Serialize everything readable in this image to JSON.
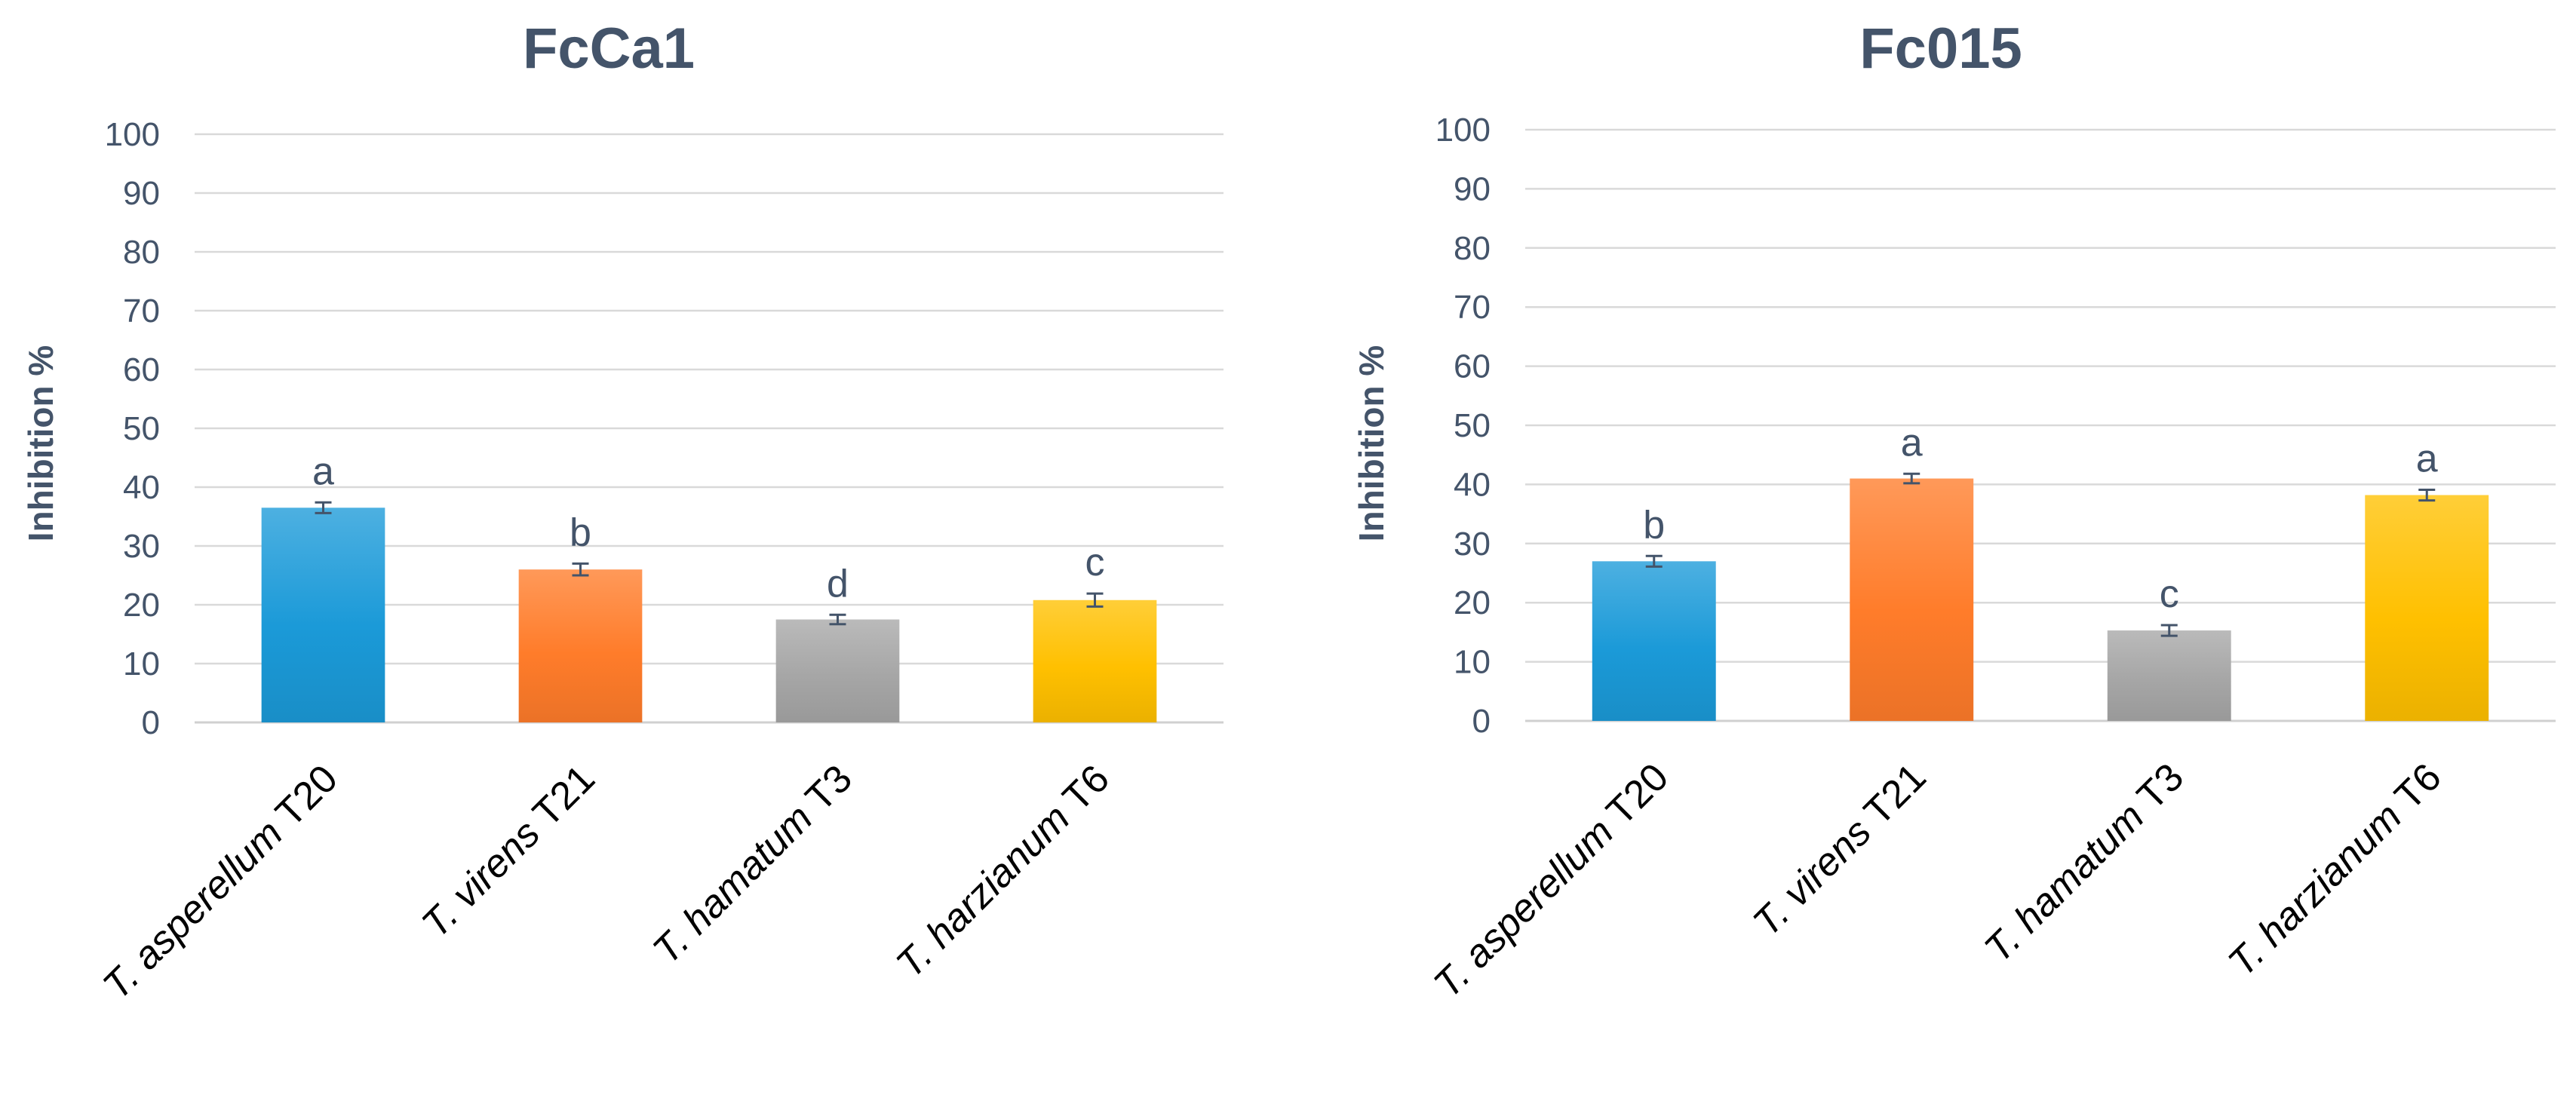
{
  "chart_data": [
    {
      "type": "bar",
      "title": "FcCa1",
      "ylabel": "Inhibition %",
      "xlabel": "",
      "ylim": [
        0,
        100
      ],
      "yticks": [
        0,
        10,
        20,
        30,
        40,
        50,
        60,
        70,
        80,
        90,
        100
      ],
      "grid": true,
      "categories": [
        {
          "italic": "T. asperellum",
          "suffix": " T20"
        },
        {
          "italic": "T. virens",
          "suffix": " T21"
        },
        {
          "italic": "T. hamatum",
          "suffix": " T3"
        },
        {
          "italic": "T. harzianum",
          "suffix": " T6"
        }
      ],
      "values": [
        36.5,
        26.0,
        17.5,
        20.8
      ],
      "errors": [
        0.9,
        1.0,
        0.8,
        1.1
      ],
      "significance": [
        "a",
        "b",
        "d",
        "c"
      ],
      "colors": [
        "#1B9AD8",
        "#FF7C2A",
        "#A6A6A6",
        "#FFC000"
      ]
    },
    {
      "type": "bar",
      "title": "Fc015",
      "ylabel": "Inhibition %",
      "xlabel": "",
      "ylim": [
        0,
        100
      ],
      "yticks": [
        0,
        10,
        20,
        30,
        40,
        50,
        60,
        70,
        80,
        90,
        100
      ],
      "grid": true,
      "categories": [
        {
          "italic": "T. asperellum",
          "suffix": " T20"
        },
        {
          "italic": "T. virens",
          "suffix": " T21"
        },
        {
          "italic": "T. hamatum",
          "suffix": " T3"
        },
        {
          "italic": "T. harzianum",
          "suffix": " T6"
        }
      ],
      "values": [
        27.0,
        41.0,
        15.3,
        38.2
      ],
      "errors": [
        0.9,
        0.8,
        0.9,
        0.9
      ],
      "significance": [
        "b",
        "a",
        "c",
        "a"
      ],
      "colors": [
        "#1B9AD8",
        "#FF7C2A",
        "#A6A6A6",
        "#FFC000"
      ]
    }
  ]
}
